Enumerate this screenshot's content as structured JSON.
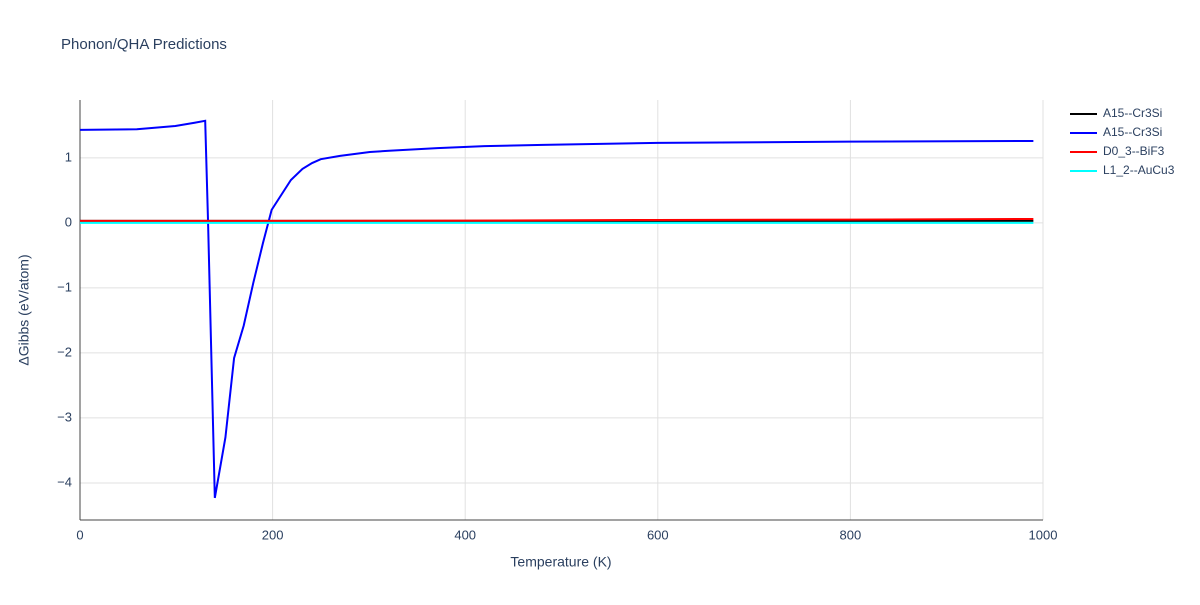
{
  "chart_data": {
    "type": "line",
    "title": "Phonon/QHA Predictions",
    "x_label": "Temperature (K)",
    "y_label": "ΔGibbs (eV/atom)",
    "xlim": [
      0,
      1000
    ],
    "ylim": [
      -4.57,
      1.89
    ],
    "xticks": [
      0,
      200,
      400,
      600,
      800,
      1000
    ],
    "yticks": [
      {
        "value": -4,
        "label": "−4"
      },
      {
        "value": -3,
        "label": "−3"
      },
      {
        "value": -2,
        "label": "−2"
      },
      {
        "value": -1,
        "label": "−1"
      },
      0,
      1
    ],
    "grid": true,
    "legend": "right",
    "series": [
      {
        "name": "A15--Cr3Si",
        "color": "#000000",
        "x": [
          0,
          200,
          400,
          600,
          800,
          990
        ],
        "values": [
          0.03,
          0.03,
          0.03,
          0.03,
          0.03,
          0.03
        ]
      },
      {
        "name": "A15--Cr3Si",
        "color": "#0000ff",
        "x": [
          0,
          59,
          99,
          119,
          130,
          133,
          140,
          151,
          160,
          170,
          180,
          190,
          199,
          219,
          231,
          241,
          250,
          270,
          280,
          301,
          321,
          371,
          420,
          481,
          600,
          800,
          990
        ],
        "values": [
          1.43,
          1.44,
          1.49,
          1.54,
          1.57,
          0,
          -4.23,
          -3.3,
          -2.08,
          -1.58,
          -0.92,
          -0.31,
          0.2,
          0.66,
          0.83,
          0.92,
          0.98,
          1.03,
          1.05,
          1.09,
          1.11,
          1.15,
          1.18,
          1.2,
          1.23,
          1.25,
          1.26
        ]
      },
      {
        "name": "D0_3--BiF3",
        "color": "#ff0000",
        "x": [
          0,
          200,
          400,
          600,
          800,
          990
        ],
        "values": [
          0.03,
          0.03,
          0.035,
          0.045,
          0.05,
          0.06
        ]
      },
      {
        "name": "L1_2--AuCu3",
        "color": "#00ffff",
        "x": [
          0,
          200,
          400,
          600,
          800,
          990
        ],
        "values": [
          0.0,
          0.0,
          0.0,
          0.0,
          0.0,
          0.0
        ]
      }
    ]
  }
}
